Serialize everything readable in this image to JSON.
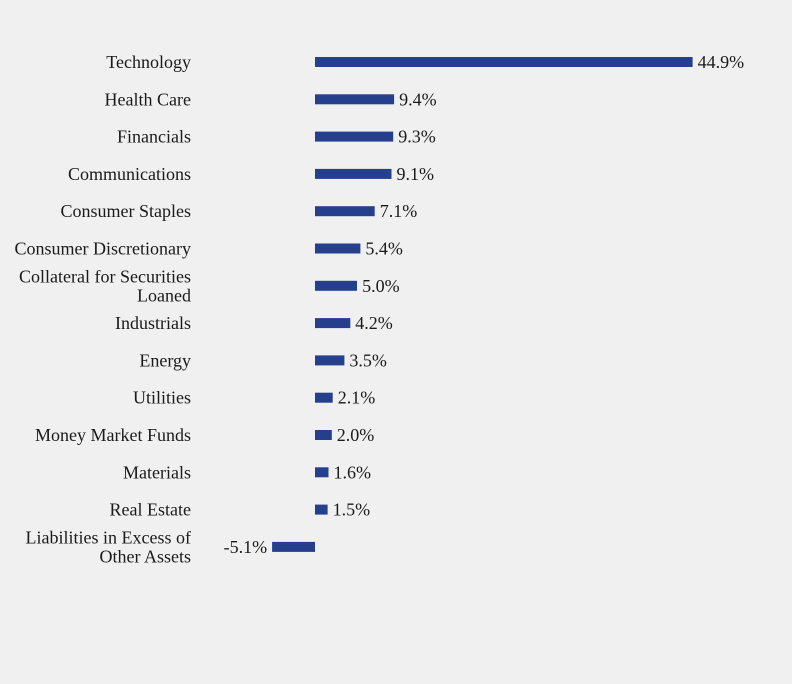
{
  "chart_data": {
    "type": "bar",
    "orientation": "horizontal",
    "title": "",
    "xlabel": "",
    "ylabel": "",
    "grid": false,
    "legend": "none",
    "bar_color": "#253f8c",
    "background": "#f0f0f0",
    "xlim": [
      -5.1,
      44.9
    ],
    "categories": [
      "Technology",
      "Health Care",
      "Financials",
      "Communications",
      "Consumer Staples",
      "Consumer Discretionary",
      "Collateral for Securities Loaned",
      "Industrials",
      "Energy",
      "Utilities",
      "Money Market Funds",
      "Materials",
      "Real Estate",
      "Liabilities in Excess of Other Assets"
    ],
    "category_lines": [
      [
        "Technology"
      ],
      [
        "Health Care"
      ],
      [
        "Financials"
      ],
      [
        "Communications"
      ],
      [
        "Consumer Staples"
      ],
      [
        "Consumer Discretionary"
      ],
      [
        "Collateral for Securities",
        "Loaned"
      ],
      [
        "Industrials"
      ],
      [
        "Energy"
      ],
      [
        "Utilities"
      ],
      [
        "Money Market Funds"
      ],
      [
        "Materials"
      ],
      [
        "Real Estate"
      ],
      [
        "Liabilities in Excess of",
        "Other Assets"
      ]
    ],
    "values": [
      44.9,
      9.4,
      9.3,
      9.1,
      7.1,
      5.4,
      5.0,
      4.2,
      3.5,
      2.1,
      2.0,
      1.6,
      1.5,
      -5.1
    ],
    "value_labels": [
      "44.9%",
      "9.4%",
      "9.3%",
      "9.1%",
      "7.1%",
      "5.4%",
      "5.0%",
      "4.2%",
      "3.5%",
      "2.1%",
      "2.0%",
      "1.6%",
      "1.5%",
      "-5.1%"
    ]
  }
}
